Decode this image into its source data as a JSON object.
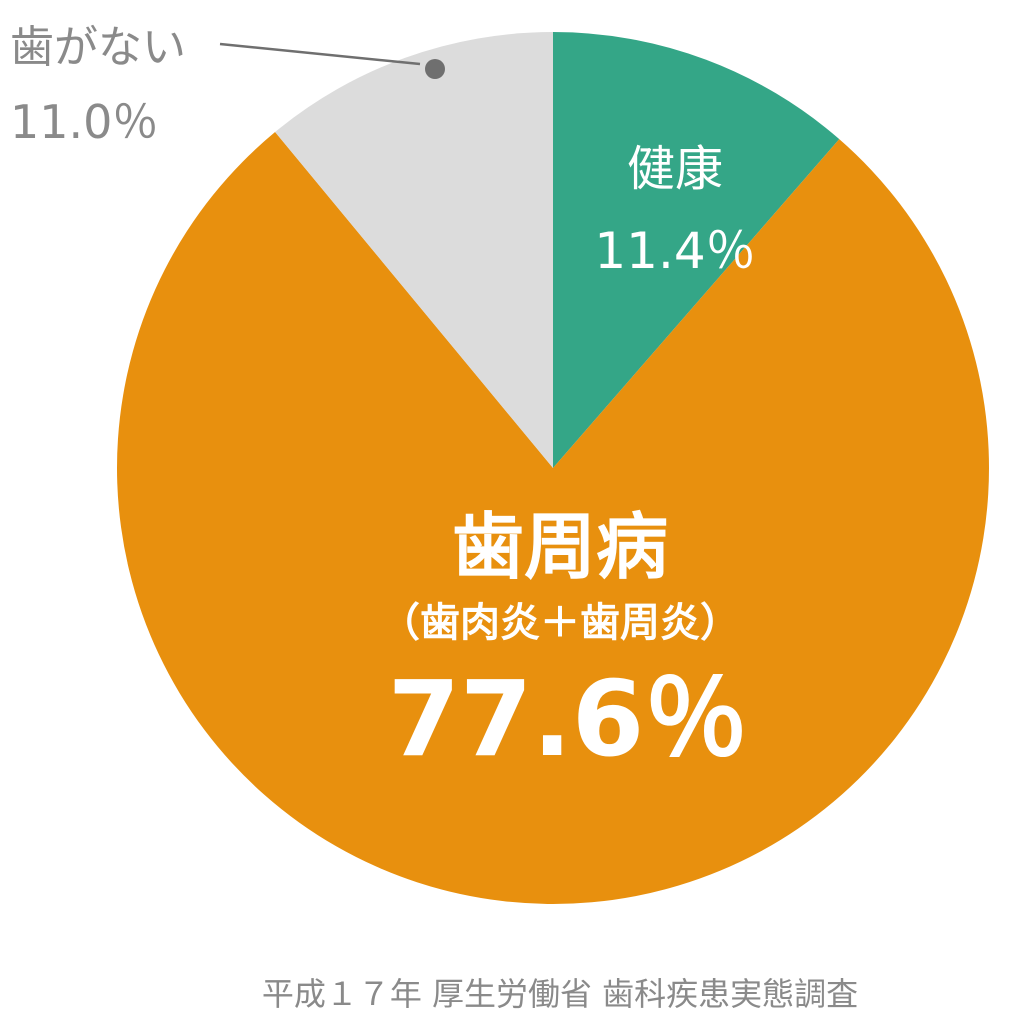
{
  "chart_data": {
    "type": "pie",
    "title": "",
    "slices": [
      {
        "name": "健康",
        "value": 11.4,
        "value_label": "11.4%",
        "color": "#34a687"
      },
      {
        "name": "歯周病",
        "subtitle": "（歯肉炎＋歯周炎）",
        "value": 77.6,
        "value_label": "77.6%",
        "color": "#e8900e"
      },
      {
        "name": "歯がない",
        "value": 11.0,
        "value_label": "11.0%",
        "color": "#dcdcdc"
      }
    ],
    "start_angle": "top",
    "direction": "clockwise",
    "legend": "none"
  },
  "labels": {
    "healthy": {
      "name": "健康",
      "value": "11.4％"
    },
    "periodontal": {
      "name": "歯周病",
      "subtitle": "（歯肉炎＋歯周炎）",
      "value": "77.6％"
    },
    "no_teeth": {
      "name": "歯がない",
      "value": "11.0％"
    }
  },
  "source": "平成１７年 厚生労働省 歯科疾患実態調査",
  "colors": {
    "healthy": "#34a687",
    "periodontal": "#e8900e",
    "no_teeth": "#dcdcdc",
    "label_text": "#ffffff",
    "outside_text": "#8a8a8a",
    "leader": "#6f6f6f"
  }
}
